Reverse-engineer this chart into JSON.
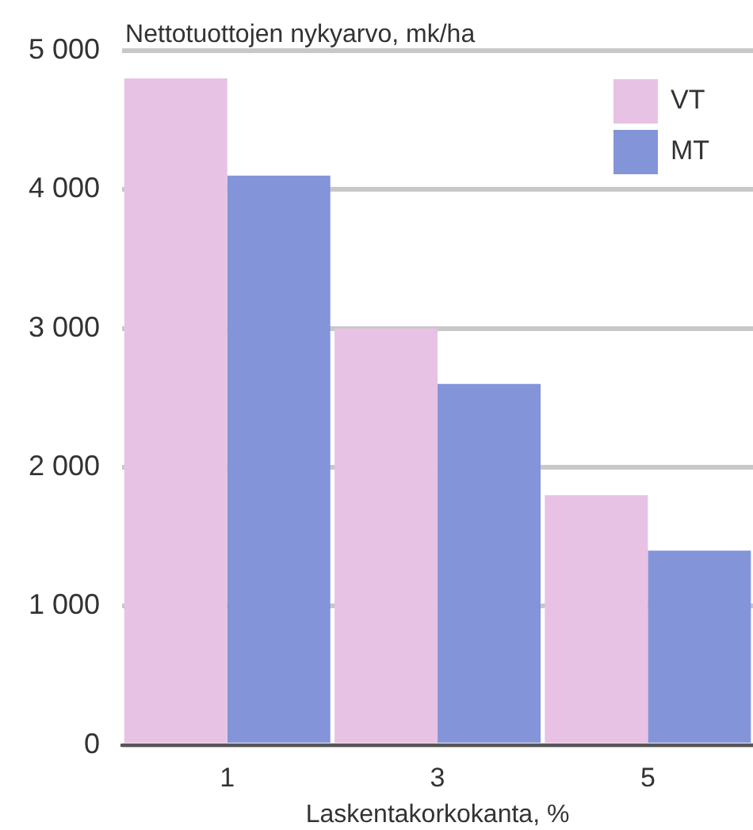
{
  "chart_data": {
    "type": "bar",
    "ylabel": "Nettotuottojen nykyarvo, mk/ha",
    "xlabel": "Laskentakorkokanta, %",
    "categories": [
      "1",
      "3",
      "5"
    ],
    "series": [
      {
        "name": "VT",
        "color": "#e8c2e4",
        "values": [
          4800,
          3000,
          1800
        ]
      },
      {
        "name": "MT",
        "color": "#8494d8",
        "values": [
          4100,
          2600,
          1400
        ]
      }
    ],
    "ylim": [
      0,
      5000
    ],
    "yticks": [
      {
        "value": 0,
        "label": "0"
      },
      {
        "value": 1000,
        "label": "1 000"
      },
      {
        "value": 2000,
        "label": "2 000"
      },
      {
        "value": 3000,
        "label": "3 000"
      },
      {
        "value": 4000,
        "label": "4 000"
      },
      {
        "value": 5000,
        "label": "5 000"
      }
    ],
    "grid": "y",
    "legend": "top right"
  }
}
